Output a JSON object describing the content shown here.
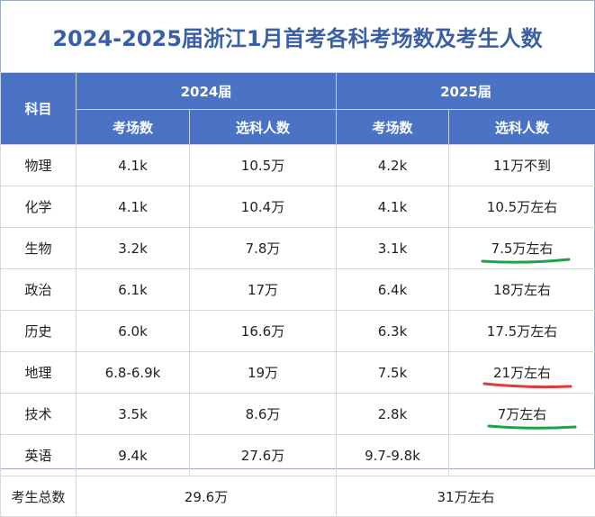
{
  "title": "2024-2025届浙江1月首考各科考场数及考生人数",
  "header": {
    "subject": "科目",
    "year_2024": "2024届",
    "year_2025": "2025届",
    "rooms": "考场数",
    "students": "选科人数"
  },
  "rows": [
    {
      "subject": "物理",
      "r2024": "4.1k",
      "s2024": "10.5万",
      "r2025": "4.2k",
      "s2025": "11万不到"
    },
    {
      "subject": "化学",
      "r2024": "4.1k",
      "s2024": "10.4万",
      "r2025": "4.1k",
      "s2025": "10.5万左右"
    },
    {
      "subject": "生物",
      "r2024": "3.2k",
      "s2024": "7.8万",
      "r2025": "3.1k",
      "s2025": "7.5万左右"
    },
    {
      "subject": "政治",
      "r2024": "6.1k",
      "s2024": "17万",
      "r2025": "6.4k",
      "s2025": "18万左右"
    },
    {
      "subject": "历史",
      "r2024": "6.0k",
      "s2024": "16.6万",
      "r2025": "6.3k",
      "s2025": "17.5万左右"
    },
    {
      "subject": "地理",
      "r2024": "6.8-6.9k",
      "s2024": "19万",
      "r2025": "7.5k",
      "s2025": "21万左右"
    },
    {
      "subject": "技术",
      "r2024": "3.5k",
      "s2024": "8.6万",
      "r2025": "2.8k",
      "s2025": "7万左右"
    },
    {
      "subject": "英语",
      "r2024": "9.4k",
      "s2024": "27.6万",
      "r2025": "9.7-9.8k",
      "s2025": ""
    }
  ],
  "total": {
    "label": "考生总数",
    "t2024": "29.6万",
    "t2025": "31万左右"
  },
  "colors": {
    "title": "#3b5fa6",
    "header_bg": "#4a72c5",
    "green_mark": "#1aa34a",
    "red_mark": "#e03a3a"
  }
}
